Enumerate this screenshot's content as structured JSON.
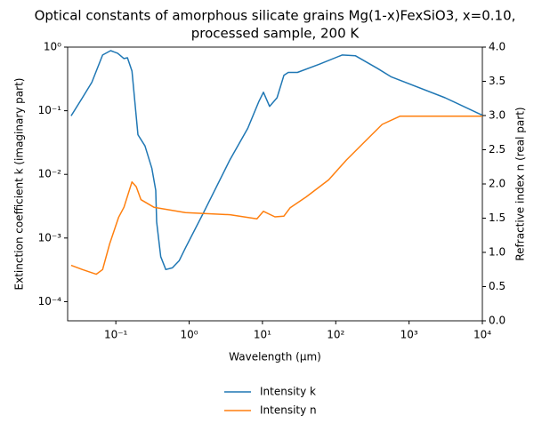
{
  "chart_data": {
    "type": "line",
    "title": [
      "Optical constants of amorphous silicate grains Mg(1-x)FexSiO3, x=0.10,",
      "processed sample, 200 K"
    ],
    "x_label": "Wavelength (μm)",
    "y_label": "Extinction coefficient k (imaginary part)",
    "y2_label": "Refractive index n (real part)",
    "xscale": "log",
    "yscale": "log",
    "xlim": [
      0.022,
      10000
    ],
    "xticks": [
      {
        "value": 0.1,
        "label": "10⁻¹"
      },
      {
        "value": 1,
        "label": "10⁰"
      },
      {
        "value": 10,
        "label": "10¹"
      },
      {
        "value": 100,
        "label": "10²"
      },
      {
        "value": 1000,
        "label": "10³"
      },
      {
        "value": 10000,
        "label": "10⁴"
      }
    ],
    "ylim": [
      5e-05,
      1
    ],
    "yticks": [
      {
        "value": 0.0001,
        "label": "10⁻⁴"
      },
      {
        "value": 0.001,
        "label": "10⁻³"
      },
      {
        "value": 0.01,
        "label": "10⁻²"
      },
      {
        "value": 0.1,
        "label": "10⁻¹"
      },
      {
        "value": 1,
        "label": "10⁰"
      }
    ],
    "y2lim": [
      0,
      4
    ],
    "y2ticks": [
      {
        "value": 0,
        "label": "0.0"
      },
      0.5,
      {
        "value": 1,
        "label": "1.0"
      },
      1.5,
      {
        "value": 2,
        "label": "2.0"
      },
      2.5,
      {
        "value": 3,
        "label": "3.0"
      },
      3.5,
      {
        "value": 4,
        "label": "4.0"
      }
    ],
    "series": [
      {
        "name": "Intensity k",
        "color": "#1f77b4",
        "x": [
          0.0245,
          0.035,
          0.047,
          0.066,
          0.085,
          0.106,
          0.129,
          0.144,
          0.166,
          0.2,
          0.25,
          0.31,
          0.35,
          0.36,
          0.41,
          0.48,
          0.59,
          0.73,
          0.89,
          1.57,
          3.6,
          6.3,
          8.9,
          10.3,
          12.5,
          15.8,
          19.6,
          22.5,
          30,
          60,
          122,
          186,
          375,
          575,
          3100,
          10000
        ],
        "values": [
          0.083,
          0.16,
          0.28,
          0.75,
          0.88,
          0.8,
          0.66,
          0.68,
          0.42,
          0.042,
          0.028,
          0.0125,
          0.0056,
          0.0018,
          0.00051,
          0.00032,
          0.00034,
          0.00044,
          0.0007,
          0.0025,
          0.017,
          0.053,
          0.138,
          0.195,
          0.117,
          0.16,
          0.36,
          0.4,
          0.4,
          0.54,
          0.75,
          0.73,
          0.46,
          0.34,
          0.16,
          0.085
        ]
      },
      {
        "name": "Intensity n",
        "color": "#ff7f0e",
        "axis": "y2",
        "x": [
          0.0245,
          0.035,
          0.054,
          0.066,
          0.082,
          0.109,
          0.129,
          0.166,
          0.19,
          0.22,
          0.33,
          0.89,
          3.6,
          8.4,
          10.3,
          14.8,
          19.6,
          23.8,
          39.5,
          80,
          140,
          245,
          430,
          750,
          10000
        ],
        "values": [
          0.81,
          0.75,
          0.68,
          0.75,
          1.12,
          1.51,
          1.66,
          2.03,
          1.96,
          1.77,
          1.66,
          1.58,
          1.55,
          1.49,
          1.6,
          1.52,
          1.53,
          1.65,
          1.81,
          2.06,
          2.35,
          2.61,
          2.87,
          2.99,
          2.99
        ]
      }
    ]
  }
}
